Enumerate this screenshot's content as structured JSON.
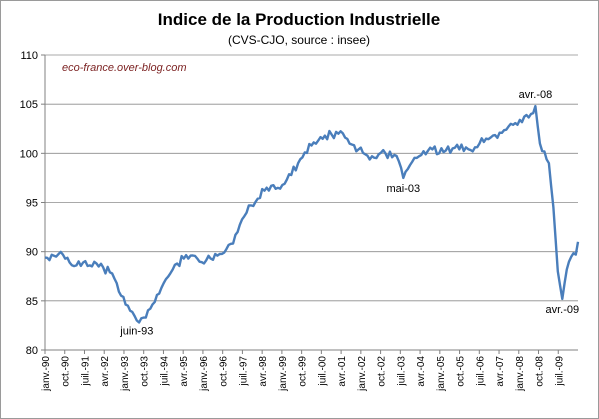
{
  "chart_data": {
    "type": "line",
    "title": "Indice de la Production  Industrielle",
    "subtitle": "(CVS-CJO, source : insee)",
    "watermark": "eco-france.over-blog.com",
    "xlabel": "",
    "ylabel": "",
    "ylim": [
      80,
      110
    ],
    "yticks": [
      80,
      85,
      90,
      95,
      100,
      105,
      110
    ],
    "grid": "horizontal",
    "legend": "none",
    "line_color": "#4a7ebb",
    "x_tick_labels": [
      "janv.-90",
      "oct.-90",
      "juil.-91",
      "avr.-92",
      "janv.-93",
      "oct.-93",
      "juil.-94",
      "avr.-95",
      "janv.-96",
      "oct.-96",
      "juil.-97",
      "avr.-98",
      "janv.-99",
      "oct.-99",
      "juil.-00",
      "avr.-01",
      "janv.-02",
      "oct.-02",
      "juil.-03",
      "avr.-04",
      "janv.-05",
      "oct.-05",
      "juil.-06",
      "avr.-07",
      "janv.-08",
      "oct.-08",
      "juil.-09"
    ],
    "annotations": [
      {
        "label": "juin-93",
        "date": "1993-06",
        "value": 83.0,
        "position": "below"
      },
      {
        "label": "mai-03",
        "date": "2003-05",
        "value": 97.5,
        "position": "below"
      },
      {
        "label": "avr.-08",
        "date": "2008-04",
        "value": 104.8,
        "position": "above"
      },
      {
        "label": "avr.-09",
        "date": "2009-04",
        "value": 85.2,
        "position": "below"
      }
    ],
    "series": [
      {
        "anchors": [
          [
            "1990-01",
            89.4
          ],
          [
            "1990-06",
            89.5
          ],
          [
            "1990-09",
            89.7
          ],
          [
            "1990-12",
            88.9
          ],
          [
            "1991-03",
            88.6
          ],
          [
            "1991-06",
            88.9
          ],
          [
            "1991-09",
            88.6
          ],
          [
            "1991-12",
            88.8
          ],
          [
            "1992-03",
            88.4
          ],
          [
            "1992-06",
            87.9
          ],
          [
            "1992-09",
            86.8
          ],
          [
            "1992-12",
            85.4
          ],
          [
            "1993-03",
            84.0
          ],
          [
            "1993-06",
            83.0
          ],
          [
            "1993-09",
            83.3
          ],
          [
            "1993-12",
            84.2
          ],
          [
            "1994-03",
            85.6
          ],
          [
            "1994-06",
            86.8
          ],
          [
            "1994-09",
            87.8
          ],
          [
            "1994-12",
            88.8
          ],
          [
            "1995-03",
            89.3
          ],
          [
            "1995-06",
            89.6
          ],
          [
            "1995-09",
            89.3
          ],
          [
            "1995-12",
            88.8
          ],
          [
            "1996-03",
            89.3
          ],
          [
            "1996-06",
            89.6
          ],
          [
            "1996-09",
            89.9
          ],
          [
            "1996-12",
            90.8
          ],
          [
            "1997-03",
            92.0
          ],
          [
            "1997-06",
            93.6
          ],
          [
            "1997-09",
            94.7
          ],
          [
            "1997-12",
            95.4
          ],
          [
            "1998-03",
            96.2
          ],
          [
            "1998-06",
            96.7
          ],
          [
            "1998-09",
            96.5
          ],
          [
            "1998-12",
            96.9
          ],
          [
            "1999-03",
            97.8
          ],
          [
            "1999-06",
            99.0
          ],
          [
            "1999-09",
            100.1
          ],
          [
            "1999-12",
            100.8
          ],
          [
            "2000-03",
            101.3
          ],
          [
            "2000-06",
            101.8
          ],
          [
            "2000-09",
            101.9
          ],
          [
            "2000-12",
            102.0
          ],
          [
            "2001-03",
            101.6
          ],
          [
            "2001-06",
            100.9
          ],
          [
            "2001-09",
            100.4
          ],
          [
            "2001-12",
            99.9
          ],
          [
            "2002-03",
            99.7
          ],
          [
            "2002-06",
            99.9
          ],
          [
            "2002-09",
            100.0
          ],
          [
            "2002-12",
            99.6
          ],
          [
            "2003-03",
            99.2
          ],
          [
            "2003-05",
            97.5
          ],
          [
            "2003-08",
            98.8
          ],
          [
            "2003-12",
            99.7
          ],
          [
            "2004-03",
            99.9
          ],
          [
            "2004-06",
            100.4
          ],
          [
            "2004-09",
            100.0
          ],
          [
            "2004-12",
            100.3
          ],
          [
            "2005-03",
            100.5
          ],
          [
            "2005-06",
            100.4
          ],
          [
            "2005-09",
            100.6
          ],
          [
            "2005-12",
            100.2
          ],
          [
            "2006-03",
            101.0
          ],
          [
            "2006-06",
            101.5
          ],
          [
            "2006-09",
            101.8
          ],
          [
            "2006-12",
            102.1
          ],
          [
            "2007-03",
            102.4
          ],
          [
            "2007-06",
            102.9
          ],
          [
            "2007-09",
            103.4
          ],
          [
            "2007-12",
            103.9
          ],
          [
            "2008-02",
            104.0
          ],
          [
            "2008-04",
            104.8
          ],
          [
            "2008-06",
            101.0
          ],
          [
            "2008-08",
            100.2
          ],
          [
            "2008-10",
            99.0
          ],
          [
            "2008-12",
            94.5
          ],
          [
            "2009-02",
            88.0
          ],
          [
            "2009-04",
            85.2
          ],
          [
            "2009-06",
            88.2
          ],
          [
            "2009-08",
            89.5
          ],
          [
            "2009-10",
            89.7
          ],
          [
            "2009-11",
            91.0
          ]
        ]
      }
    ]
  }
}
